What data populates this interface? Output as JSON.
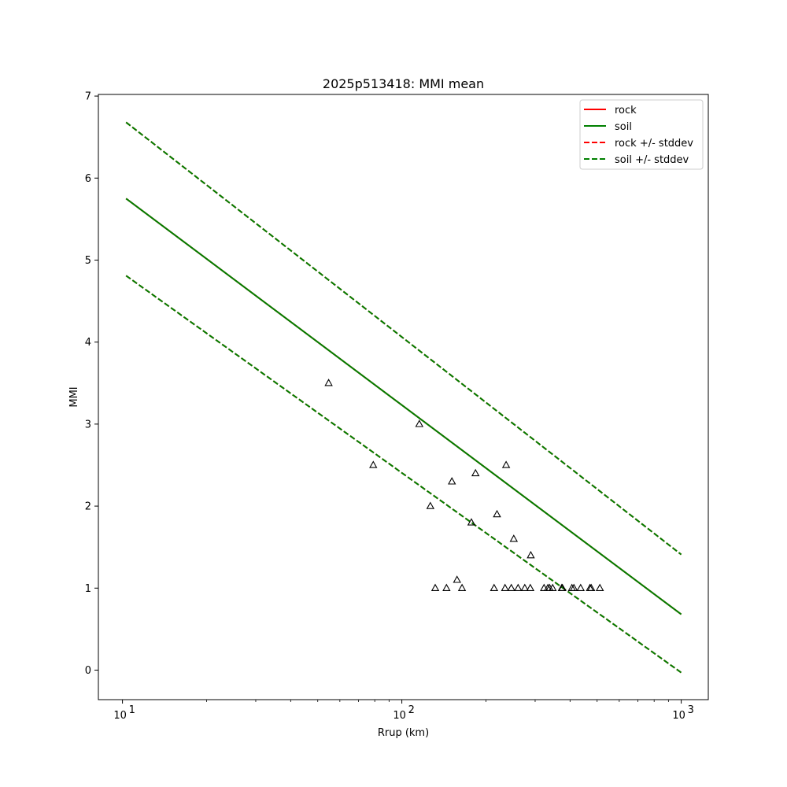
{
  "chart_data": {
    "type": "scatter",
    "title": "2025p513418: MMI mean",
    "xlabel": "Rrup (km)",
    "ylabel": "MMI",
    "xscale": "log",
    "xlim": [
      8.2,
      1250
    ],
    "ylim": [
      -0.36,
      7.02
    ],
    "x_ticks": [
      {
        "value": 10,
        "base": "10",
        "exp": "1"
      },
      {
        "value": 100,
        "base": "10",
        "exp": "2"
      },
      {
        "value": 1000,
        "base": "10",
        "exp": "3"
      }
    ],
    "y_ticks": [
      0,
      1,
      2,
      3,
      4,
      5,
      6,
      7
    ],
    "grid": false,
    "legend": {
      "placement": "top-right",
      "entries": [
        {
          "label": "rock",
          "color": "#ff0000",
          "dash": "solid"
        },
        {
          "label": "soil",
          "color": "#008000",
          "dash": "solid"
        },
        {
          "label": "rock +/- stddev",
          "color": "#ff0000",
          "dash": "dashed"
        },
        {
          "label": "soil +/- stddev",
          "color": "#008000",
          "dash": "dashed"
        }
      ]
    },
    "series": [
      {
        "name": "rock",
        "color": "#ff0000",
        "dash": "solid",
        "x": [
          10.3,
          1000
        ],
        "y": [
          5.75,
          0.68
        ]
      },
      {
        "name": "soil",
        "color": "#008000",
        "dash": "solid",
        "x": [
          10.3,
          1000
        ],
        "y": [
          5.75,
          0.68
        ]
      },
      {
        "name": "rock +/- stddev",
        "color": "#ff0000",
        "dash": "dashed",
        "x": [
          10.3,
          1000
        ],
        "y": [
          6.68,
          1.41
        ]
      },
      {
        "color": "#ff0000",
        "dash": "dashed",
        "x": [
          10.3,
          1000
        ],
        "y": [
          4.81,
          -0.03
        ]
      },
      {
        "name": "soil +/- stddev",
        "color": "#008000",
        "dash": "dashed",
        "x": [
          10.3,
          1000
        ],
        "y": [
          6.68,
          1.41
        ]
      },
      {
        "color": "#008000",
        "dash": "dashed",
        "x": [
          10.3,
          1000
        ],
        "y": [
          4.81,
          -0.03
        ]
      }
    ],
    "observations": {
      "marker": "triangle",
      "color": "#000000",
      "points": [
        [
          54.7,
          3.5
        ],
        [
          79.0,
          2.5
        ],
        [
          115.5,
          3.0
        ],
        [
          126.5,
          2.0
        ],
        [
          131.7,
          1.0
        ],
        [
          144.5,
          1.0
        ],
        [
          151.1,
          2.3
        ],
        [
          157.6,
          1.1
        ],
        [
          164.2,
          1.0
        ],
        [
          177.4,
          1.8
        ],
        [
          183.5,
          2.4
        ],
        [
          213.9,
          1.0
        ],
        [
          219.1,
          1.9
        ],
        [
          234.1,
          1.0
        ],
        [
          236.2,
          2.5
        ],
        [
          246.5,
          1.0
        ],
        [
          251.5,
          1.6
        ],
        [
          260.7,
          1.0
        ],
        [
          275.5,
          1.0
        ],
        [
          288.3,
          1.0
        ],
        [
          289.4,
          1.4
        ],
        [
          322.8,
          1.0
        ],
        [
          333.3,
          1.0
        ],
        [
          338.0,
          1.0
        ],
        [
          346.5,
          1.0
        ],
        [
          373.7,
          1.0
        ],
        [
          375.6,
          1.0
        ],
        [
          406.3,
          1.0
        ],
        [
          412.9,
          1.0
        ],
        [
          436.5,
          1.0
        ],
        [
          471.3,
          1.0
        ],
        [
          476.1,
          1.0
        ],
        [
          511.4,
          1.0
        ]
      ]
    }
  }
}
